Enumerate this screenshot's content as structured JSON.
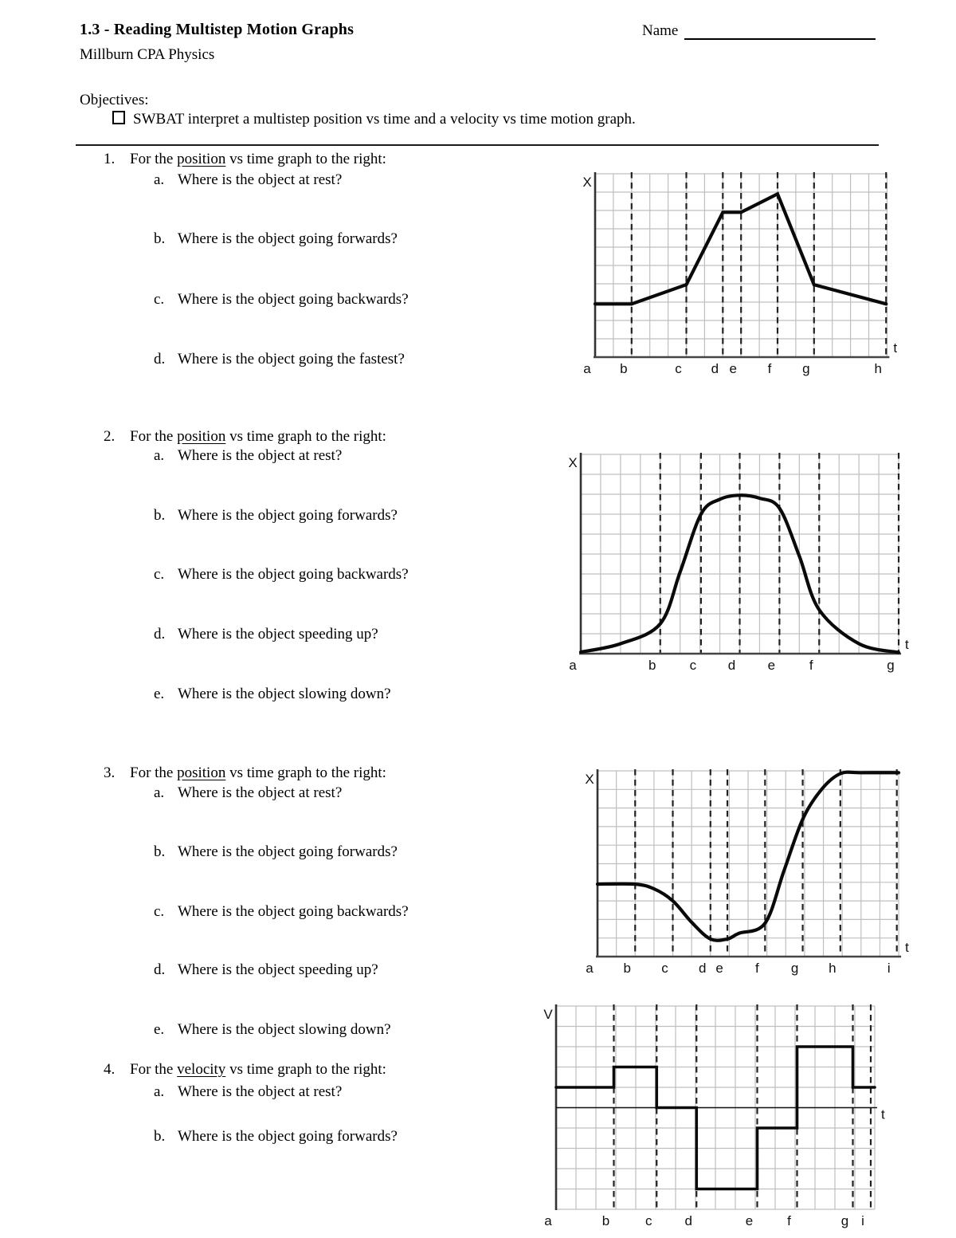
{
  "page": {
    "title": "1.3 - Reading Multistep Motion Graphs",
    "name_label": "Name",
    "course": "Millburn CPA Physics",
    "objectives_heading": "Objectives:",
    "objective": "SWBAT interpret a multistep position vs time and a velocity vs time motion graph."
  },
  "questions": [
    {
      "number": "1.",
      "prompt_prefix": "For the ",
      "prompt_keyword": "position",
      "prompt_suffix": " vs time graph to the right:",
      "subquestions": [
        {
          "letter": "a.",
          "text": "Where is the object at rest?"
        },
        {
          "letter": "b.",
          "text": "Where is the object going forwards?"
        },
        {
          "letter": "c.",
          "text": "Where is the object going backwards?"
        },
        {
          "letter": "d.",
          "text": "Where is the object going the fastest?"
        }
      ]
    },
    {
      "number": "2.",
      "prompt_prefix": "For the ",
      "prompt_keyword": "position",
      "prompt_suffix": " vs time graph to the right:",
      "subquestions": [
        {
          "letter": "a.",
          "text": "Where is the object at rest?"
        },
        {
          "letter": "b.",
          "text": "Where is the object going forwards?"
        },
        {
          "letter": "c.",
          "text": "Where is the object going backwards?"
        },
        {
          "letter": "d.",
          "text": "Where is the object speeding up?"
        },
        {
          "letter": "e.",
          "text": "Where is the object slowing down?"
        }
      ]
    },
    {
      "number": "3.",
      "prompt_prefix": "For the ",
      "prompt_keyword": "position",
      "prompt_suffix": " vs time graph to the right:",
      "subquestions": [
        {
          "letter": "a.",
          "text": "Where is the object at rest?"
        },
        {
          "letter": "b.",
          "text": "Where is the object going forwards?"
        },
        {
          "letter": "c.",
          "text": "Where is the object going backwards?"
        },
        {
          "letter": "d.",
          "text": "Where is the object speeding up?"
        },
        {
          "letter": "e.",
          "text": "Where is the object slowing down?"
        }
      ]
    },
    {
      "number": "4.",
      "prompt_prefix": "For the ",
      "prompt_keyword": "velocity",
      "prompt_suffix": " vs time graph to the right:",
      "subquestions": [
        {
          "letter": "a.",
          "text": "Where is the object at rest?"
        },
        {
          "letter": "b.",
          "text": "Where is the object going forwards?"
        }
      ]
    }
  ],
  "chart_data": [
    {
      "type": "line",
      "curve": "polyline",
      "ylabel": "X",
      "xlabel": "t",
      "x_tick_labels": [
        "a",
        "b",
        "c",
        "d",
        "e",
        "f",
        "g",
        "h"
      ],
      "x_tick_positions": [
        0,
        2,
        5,
        7,
        8,
        10,
        12,
        15.95
      ],
      "grid": {
        "cols": 16,
        "rows": 10
      },
      "points": [
        [
          0,
          2.9
        ],
        [
          2,
          2.9
        ],
        [
          5,
          3.95
        ],
        [
          7,
          7.9
        ],
        [
          8,
          7.9
        ],
        [
          10,
          8.9
        ],
        [
          12,
          3.95
        ],
        [
          15.95,
          2.9
        ]
      ],
      "description": "Position vs time: flat a-b, gentle rise b-c, steep rise c-d, flat d-e, gentle rise to peak at f, steep drop f-g, gentle decline g-h"
    },
    {
      "type": "line",
      "curve": "smooth",
      "ylabel": "X",
      "xlabel": "t",
      "x_tick_labels": [
        "a",
        "b",
        "c",
        "d",
        "e",
        "f",
        "g"
      ],
      "x_tick_positions": [
        0,
        4,
        6.05,
        8,
        10,
        12,
        16
      ],
      "grid": {
        "cols": 16,
        "rows": 10
      },
      "points": [
        [
          0,
          0.08
        ],
        [
          2,
          0.5
        ],
        [
          4,
          1.5
        ],
        [
          5,
          4.1
        ],
        [
          6.05,
          7.0
        ],
        [
          7,
          7.75
        ],
        [
          8,
          7.95
        ],
        [
          9,
          7.8
        ],
        [
          10,
          7.3
        ],
        [
          11,
          4.9
        ],
        [
          12,
          2.2
        ],
        [
          14,
          0.5
        ],
        [
          16,
          0.06
        ]
      ],
      "description": "Position vs time: smooth bell curve, rises from rest at a, steepest b-c, rounded peak at d, steepest descent e-f, levels out at g"
    },
    {
      "type": "line",
      "curve": "smooth",
      "ylabel": "X",
      "xlabel": "t",
      "x_tick_labels": [
        "a",
        "b",
        "c",
        "d",
        "e",
        "f",
        "g",
        "h",
        "i"
      ],
      "x_tick_positions": [
        0,
        2,
        4,
        6,
        6.9,
        8.9,
        10.9,
        12.9,
        15.9
      ],
      "grid": {
        "cols": 16,
        "rows": 10
      },
      "points": [
        [
          0,
          3.9
        ],
        [
          2,
          3.9
        ],
        [
          3,
          3.65
        ],
        [
          4,
          3.0
        ],
        [
          5,
          1.85
        ],
        [
          6,
          0.95
        ],
        [
          6.9,
          0.95
        ],
        [
          7.5,
          1.25
        ],
        [
          8.9,
          1.8
        ],
        [
          9.9,
          4.6
        ],
        [
          10.9,
          7.4
        ],
        [
          11.9,
          9.0
        ],
        [
          12.9,
          9.85
        ],
        [
          14,
          9.9
        ],
        [
          16,
          9.9
        ]
      ],
      "description": "Position vs time: flat a-b, smooth dip to minimum d-e, smooth steep rise f-h, flat at top h-i"
    },
    {
      "type": "line",
      "curve": "step",
      "ylabel": "V",
      "xlabel": "t",
      "x_tick_labels": [
        "a",
        "b",
        "c",
        "d",
        "e",
        "f",
        "g",
        "i"
      ],
      "x_tick_positions": [
        0,
        2.9,
        5.05,
        7.05,
        10.1,
        12.1,
        14.9,
        15.8
      ],
      "grid": {
        "cols": 16,
        "rows": 10
      },
      "zero_row": 5,
      "segments": [
        {
          "from": 0,
          "to": 2.9,
          "v": 1
        },
        {
          "from": 2.9,
          "to": 5.05,
          "v": 2
        },
        {
          "from": 5.05,
          "to": 7.05,
          "v": 0
        },
        {
          "from": 7.05,
          "to": 10.1,
          "v": -4
        },
        {
          "from": 10.1,
          "to": 12.1,
          "v": -1
        },
        {
          "from": 12.1,
          "to": 14.9,
          "v": 3
        },
        {
          "from": 14.9,
          "to": 16,
          "v": 1
        }
      ],
      "description": "Velocity vs time step graph: +1 a-b, +2 b-c, 0 c-d, -4 d-e, -1 e-f, +3 f-g, +1 after g"
    }
  ]
}
